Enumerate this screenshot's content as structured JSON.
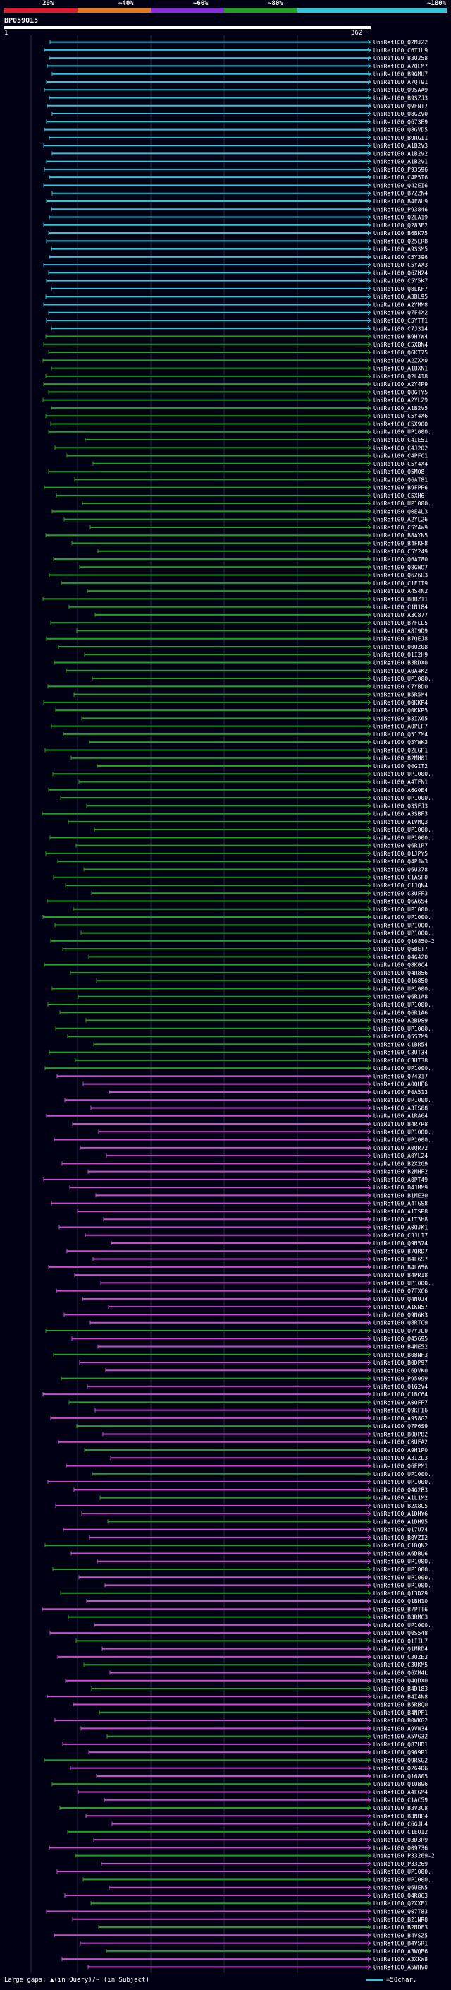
{
  "header": {
    "query_id": "BP059015",
    "start": "1",
    "end": "362",
    "legend": [
      {
        "label": "20%",
        "color": "#e0192c"
      },
      {
        "label": "~40%",
        "color": "#e8781c"
      },
      {
        "label": "~60%",
        "color": "#8a2be2"
      },
      {
        "label": "~80%",
        "color": "#1fa31f"
      },
      {
        "label": "~100%",
        "color": "#2ec6d8"
      }
    ]
  },
  "colors": {
    "cyan": "#2ec6d8",
    "green": "#1fa31f",
    "magenta": "#d04ad0",
    "grid": "#2a2a4a"
  },
  "hits": [
    "UniRef100_Q2MJ22",
    "UniRef100_C6T1L9",
    "UniRef100_B3U258",
    "UniRef100_A7QLM7",
    "UniRef100_B9GMU7",
    "UniRef100_A7QT91",
    "UniRef100_Q9SAA9",
    "UniRef100_B9SZJ3",
    "UniRef100_Q9FNT7",
    "UniRef100_Q8GZV0",
    "UniRef100_Q673E9",
    "UniRef100_Q8GVD5",
    "UniRef100_B9RGI1",
    "UniRef100_A1B2V3",
    "UniRef100_A1B2V2",
    "UniRef100_A1B2V1",
    "UniRef100_P93596",
    "UniRef100_C4P5T6",
    "UniRef100_Q42EI6",
    "UniRef100_B7ZZN4",
    "UniRef100_B4F8U9",
    "UniRef100_P93846",
    "UniRef100_Q2LA19",
    "UniRef100_Q283E2",
    "UniRef100_B6BK75",
    "UniRef100_Q25ER8",
    "UniRef100_A9SSM5",
    "UniRef100_C5Y396",
    "UniRef100_C5YAX3",
    "UniRef100_Q6ZH24",
    "UniRef100_C5Y5K7",
    "UniRef100_Q8LKF7",
    "UniRef100_A3BL95",
    "UniRef100_A2YMM8",
    "UniRef100_Q7F4X2",
    "UniRef100_C5YTT1",
    "UniRef100_C7J314",
    "UniRef100_B9HYW4",
    "UniRef100_C5XBN4",
    "UniRef100_Q6KT75",
    "UniRef100_A2ZXX0",
    "UniRef100_A1BXN1",
    "UniRef100_Q2L418",
    "UniRef100_A2Y4P9",
    "UniRef100_Q8GTY5",
    "UniRef100_A2YL29",
    "UniRef100_A1B2V5",
    "UniRef100_C5Y4X6",
    "UniRef100_C5X900",
    "UniRef100_UP1000..",
    "UniRef100_C4IE51",
    "UniRef100_C4J202",
    "UniRef100_C4PFC1",
    "UniRef100_C5Y4X4",
    "UniRef100_Q5MQ8",
    "UniRef100_Q6AT81",
    "UniRef100_B9FPP6",
    "UniRef100_C5XH6",
    "UniRef100_UP1000..",
    "UniRef100_Q0E4L3",
    "UniRef100_A2YL26",
    "UniRef100_C5Y4W9",
    "UniRef100_B8AYN5",
    "UniRef100_B4FKF8",
    "UniRef100_C5Y249",
    "UniRef100_Q6AT80",
    "UniRef100_Q8GWO7",
    "UniRef100_Q6Z6U3",
    "UniRef100_C1FIT9",
    "UniRef100_A4S4N2",
    "UniRef100_B8BZ11",
    "UniRef100_C1N184",
    "UniRef100_A3C877",
    "UniRef100_B7FLL5",
    "UniRef100_A8I9D9",
    "UniRef100_B7QEJ8",
    "UniRef100_Q0QZ08",
    "UniRef100_Q1I2H9",
    "UniRef100_B3RDX0",
    "UniRef100_A0A4K2",
    "UniRef100_UP1000..",
    "UniRef100_C7YBD0",
    "UniRef100_B5R5M4",
    "UniRef100_Q0KKP4",
    "UniRef100_Q0KKP5",
    "UniRef100_B3IX65",
    "UniRef100_A0PLF7",
    "UniRef100_Q51ZM4",
    "UniRef100_Q5YWK3",
    "UniRef100_Q2LGP1",
    "UniRef100_B2MH01",
    "UniRef100_Q0GIT2",
    "UniRef100_UP1000..",
    "UniRef100_A4TFN1",
    "UniRef100_A6G0E4",
    "UniRef100_UP1000..",
    "UniRef100_Q3SFJ3",
    "UniRef100_A3SBF3",
    "UniRef100_A1VMQ3",
    "UniRef100_UP1000..",
    "UniRef100_UP1000..",
    "UniRef100_Q6R1R7",
    "UniRef100_Q1JPY5",
    "UniRef100_Q4PJW3",
    "UniRef100_Q6U378",
    "UniRef100_C1ASF0",
    "UniRef100_C1JQN4",
    "UniRef100_C3UFF3",
    "UniRef100_Q6A654",
    "UniRef100_UP1000..",
    "UniRef100_UP1000..",
    "UniRef100_UP1000..",
    "UniRef100_UP1000..",
    "UniRef100_Q16850-2",
    "UniRef100_Q6BET7",
    "UniRef100_Q46420",
    "UniRef100_Q8K0C4",
    "UniRef100_Q4R856",
    "UniRef100_Q16850",
    "UniRef100_UP1000..",
    "UniRef100_Q6R1A8",
    "UniRef100_UP1000..",
    "UniRef100_Q6R1A6",
    "UniRef100_A2BDS9",
    "UniRef100_UP1000..",
    "UniRef100_Q5S7M9",
    "UniRef100_C1BR54",
    "UniRef100_C3UT34",
    "UniRef100_C3UT38",
    "UniRef100_UP1000..",
    "UniRef100_Q74317",
    "UniRef100_A0QHP6",
    "UniRef100_P0A513",
    "UniRef100_UP1000..",
    "UniRef100_A3IS68",
    "UniRef100_A1RA64",
    "UniRef100_B4R7R8",
    "UniRef100_UP1000..",
    "UniRef100_UP1000..",
    "UniRef100_A0QR72",
    "UniRef100_A0YL24",
    "UniRef100_B2X2G9",
    "UniRef100_B2MHF2",
    "UniRef100_A0PT49",
    "UniRef100_B4JMM9",
    "UniRef100_B1ME30",
    "UniRef100_A4TGS8",
    "UniRef100_A1TSP8",
    "UniRef100_A1T3H8",
    "UniRef100_A0QJK1",
    "UniRef100_C3JL17",
    "UniRef100_Q9N574",
    "UniRef100_B7QRD7",
    "UniRef100_B4L6S7",
    "UniRef100_B4L656",
    "UniRef100_B4PR18",
    "UniRef100_UP1000..",
    "UniRef100_Q7TXC6",
    "UniRef100_Q4N0J4",
    "UniRef100_A1KN57",
    "UniRef100_Q9NGK3",
    "UniRef100_Q8RTC9",
    "UniRef100_Q7YJL0",
    "UniRef100_Q45695",
    "UniRef100_B4ME52",
    "UniRef100_B0BNF3",
    "UniRef100_B0DP97",
    "UniRef100_C6DVK0",
    "UniRef100_P95099",
    "UniRef100_Q1G2V4",
    "UniRef100_C1BC64",
    "UniRef100_A0QFP7",
    "UniRef100_Q9KFI6",
    "UniRef100_A9S8G2",
    "UniRef100_Q7P6S9",
    "UniRef100_B0DP82",
    "UniRef100_C0UFA2",
    "UniRef100_A9H1P0",
    "UniRef100_A3IZL3",
    "UniRef100_Q6EPM1",
    "UniRef100_UP1000..",
    "UniRef100_UP1000..",
    "UniRef100_Q4G2B3",
    "UniRef100_A1L1M2",
    "UniRef100_B2X8G5",
    "UniRef100_A1DHY6",
    "UniRef100_A1DH95",
    "UniRef100_Q17U74",
    "UniRef100_B0VZI2",
    "UniRef100_C1DQN2",
    "UniRef100_A6DBU6",
    "UniRef100_UP1000..",
    "UniRef100_UP1000..",
    "UniRef100_UP1000..",
    "UniRef100_UP1000..",
    "UniRef100_Q13DZ9",
    "UniRef100_Q1BH10",
    "UniRef100_B7PTT6",
    "UniRef100_B3RMC3",
    "UniRef100_UP1000..",
    "UniRef100_Q0S548",
    "UniRef100_Q1IIL7",
    "UniRef100_Q1MRD4",
    "UniRef100_C3UZE3",
    "UniRef100_C3UKM5",
    "UniRef100_Q6XM4L",
    "UniRef100_Q4QDX0",
    "UniRef100_B4D183",
    "UniRef100_B4I4N8",
    "UniRef100_B5RBQ0",
    "UniRef100_B4NPF1",
    "UniRef100_B0WKG2",
    "UniRef100_A9VW34",
    "UniRef100_A5VG32",
    "UniRef100_Q87HD1",
    "UniRef100_Q969P1",
    "UniRef100_Q9RSG2",
    "UniRef100_Q26406",
    "UniRef100_Q16805",
    "UniRef100_Q1UB96",
    "UniRef100_A4FGM4",
    "UniRef100_C1AC59",
    "UniRef100_B3V3C8",
    "UniRef100_B3NBP4",
    "UniRef100_C6GJL4",
    "UniRef100_C1EO12",
    "UniRef100_Q3D3R9",
    "UniRef100_Q09736",
    "UniRef100_P33269-2",
    "UniRef100_P33269",
    "UniRef100_UP1000..",
    "UniRef100_UP1000..",
    "UniRef100_Q6UEN5",
    "UniRef100_Q4R863",
    "UniRef100_Q2XXE1",
    "UniRef100_Q07T83",
    "UniRef100_B21NR8",
    "UniRef100_B2NDF3",
    "UniRef100_B4VSZ5",
    "UniRef100_B4VSR1",
    "UniRef100_A3WQB6",
    "UniRef100_A3XKW8",
    "UniRef100_A5WHV0"
  ],
  "footer": {
    "large_gaps": "Large gaps: ▲(in Query)/~ (in Subject)",
    "scale": "=50char."
  }
}
